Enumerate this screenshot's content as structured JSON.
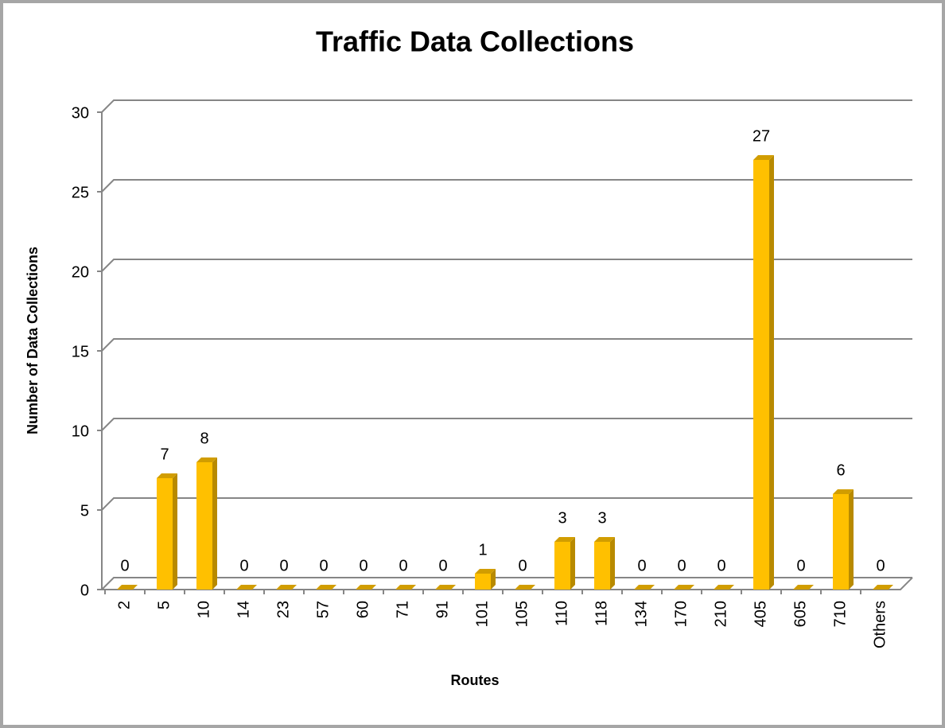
{
  "chart_data": {
    "type": "bar3d",
    "title": "Traffic Data Collections",
    "x_label": "Routes",
    "y_label": "Number of Data Collections",
    "categories": [
      "2",
      "5",
      "10",
      "14",
      "23",
      "57",
      "60",
      "71",
      "91",
      "101",
      "105",
      "110",
      "118",
      "134",
      "170",
      "210",
      "405",
      "605",
      "710",
      "Others"
    ],
    "values": [
      0,
      7,
      8,
      0,
      0,
      0,
      0,
      0,
      0,
      1,
      0,
      3,
      3,
      0,
      0,
      0,
      27,
      0,
      6,
      0
    ],
    "color": "#ffc000",
    "ylim": [
      0,
      30
    ],
    "yticks": [
      0,
      5,
      10,
      15,
      20,
      25,
      30
    ],
    "grid": true
  }
}
